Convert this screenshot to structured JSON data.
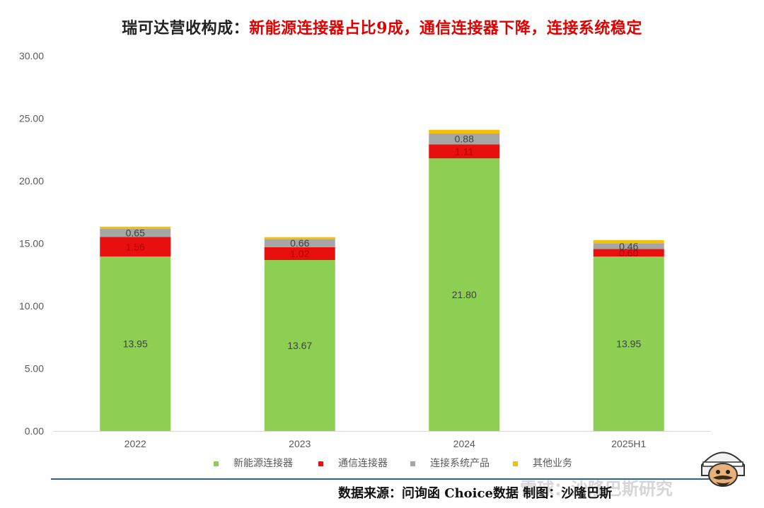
{
  "title": {
    "part1": "瑞可达营收构成：",
    "part2": "新能源连接器占比9成，通信连接器下降，连接系统稳定"
  },
  "source": "数据来源：问询函 Choice数据  制图：沙隆巴斯",
  "watermark": "雪球：沙隆巴斯研究",
  "colors": {
    "new_energy": "#8ccf52",
    "comm": "#e80f0f",
    "system": "#a6a6a6",
    "other": "#f5c000"
  },
  "chart_data": {
    "type": "bar",
    "stacked": true,
    "categories": [
      "2022",
      "2023",
      "2024",
      "2025H1"
    ],
    "ylim": [
      0,
      30
    ],
    "yticks": [
      "0.00",
      "5.00",
      "10.00",
      "15.00",
      "20.00",
      "25.00",
      "30.00"
    ],
    "legend_position": "bottom",
    "grid": false,
    "series": [
      {
        "name": "新能源连接器",
        "color": "#8ccf52",
        "values": [
          13.95,
          13.67,
          21.8,
          13.95
        ],
        "labels": [
          "13.95",
          "13.67",
          "21.80",
          "13.95"
        ]
      },
      {
        "name": "通信连接器",
        "color": "#e80f0f",
        "values": [
          1.56,
          1.02,
          1.11,
          0.6
        ],
        "labels": [
          "1.56",
          "1.02",
          "1.11",
          "0.60"
        ]
      },
      {
        "name": "连接系统产品",
        "color": "#a6a6a6",
        "values": [
          0.65,
          0.66,
          0.88,
          0.46
        ],
        "labels": [
          "0.65",
          "0.66",
          "0.88",
          "0.46"
        ]
      },
      {
        "name": "其他业务",
        "color": "#f5c000",
        "values": [
          0.18,
          0.15,
          0.3,
          0.25
        ],
        "labels": [
          "",
          "",
          "",
          ""
        ]
      }
    ]
  }
}
